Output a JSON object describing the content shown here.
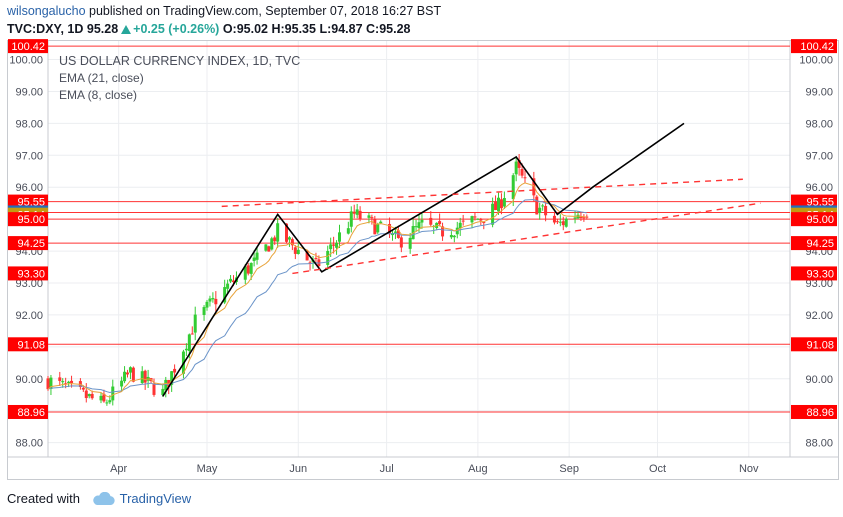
{
  "header": {
    "user": "wilsongalucho",
    "published_text": "published on TradingView.com, September 07, 2018 16:27 BST",
    "symbol": "TVC:DXY, 1D",
    "price": "95.28",
    "change": "+0.25 (+0.26%)",
    "open": "O:95.02",
    "high": "H:95.35",
    "low": "L:94.87",
    "close": "C:95.28"
  },
  "legend": {
    "title": "US DOLLAR CURRENCY INDEX, 1D, TVC",
    "ema21": "EMA (21, close)",
    "ema8": "EMA (8, close)"
  },
  "footer": {
    "created_with": "Created with",
    "brand": "TradingView"
  },
  "colors": {
    "up": "#26a69a",
    "candle_up": "#33cc33",
    "candle_down": "#ff3333",
    "hline": "#ff3333",
    "ema21": "#6b94c9",
    "ema8": "#e8a33a",
    "badge_red": "#ff0000",
    "badge_blue": "#1f6fbf",
    "badge_gold": "#c49a12"
  },
  "chart_data": {
    "type": "candlestick",
    "title": "US DOLLAR CURRENCY INDEX, 1D, TVC",
    "x_ticks": [
      "Apr",
      "May",
      "Jun",
      "Jul",
      "Aug",
      "Sep",
      "Oct",
      "Nov"
    ],
    "x_tick_dates": [
      "2018-04-01",
      "2018-05-01",
      "2018-06-01",
      "2018-07-01",
      "2018-08-01",
      "2018-09-01",
      "2018-10-01",
      "2018-11-01"
    ],
    "x_range": [
      "2018-03-08",
      "2018-11-15"
    ],
    "y_ticks": [
      88.0,
      89.0,
      90.0,
      91.0,
      92.0,
      93.0,
      94.0,
      95.0,
      96.0,
      97.0,
      98.0,
      99.0,
      100.0
    ],
    "ylim": [
      87.55,
      100.58
    ],
    "price_badges": [
      {
        "value": 100.42,
        "label": "100.42",
        "color": "red"
      },
      {
        "value": 95.55,
        "label": "95.55",
        "color": "red"
      },
      {
        "value": 95.21,
        "label": "95.21",
        "color": "blue"
      },
      {
        "value": 95.14,
        "label": "95.14",
        "color": "gold"
      },
      {
        "value": 95.0,
        "label": "95.00",
        "color": "red"
      },
      {
        "value": 94.25,
        "label": "94.25",
        "color": "red"
      },
      {
        "value": 93.3,
        "label": "93.30",
        "color": "red"
      },
      {
        "value": 91.08,
        "label": "91.08",
        "color": "red"
      },
      {
        "value": 88.96,
        "label": "88.96",
        "color": "red"
      }
    ],
    "horizontal_lines": [
      100.42,
      95.55,
      95.21,
      95.0,
      94.25,
      91.08,
      88.96
    ],
    "zigzag": [
      {
        "date": "2018-04-16",
        "value": 89.45
      },
      {
        "date": "2018-05-25",
        "value": 95.15
      },
      {
        "date": "2018-06-09",
        "value": 93.35
      },
      {
        "date": "2018-08-14",
        "value": 96.95
      },
      {
        "date": "2018-08-28",
        "value": 95.15
      },
      {
        "date": "2018-09-09",
        "value": 96.0
      },
      {
        "date": "2018-10-10",
        "value": 98.0
      }
    ],
    "channel_upper": [
      {
        "date": "2018-05-06",
        "value": 95.4
      },
      {
        "date": "2018-10-30",
        "value": 96.25
      }
    ],
    "channel_lower": [
      {
        "date": "2018-05-30",
        "value": 93.3
      },
      {
        "date": "2018-11-05",
        "value": 95.5
      }
    ],
    "candle_anchors": [
      {
        "date": "2018-03-08",
        "value": 89.95
      },
      {
        "date": "2018-03-27",
        "value": 89.2
      },
      {
        "date": "2018-04-05",
        "value": 90.2
      },
      {
        "date": "2018-04-16",
        "value": 89.55
      },
      {
        "date": "2018-04-27",
        "value": 91.8
      },
      {
        "date": "2018-05-08",
        "value": 92.9
      },
      {
        "date": "2018-05-18",
        "value": 93.7
      },
      {
        "date": "2018-05-25",
        "value": 94.6
      },
      {
        "date": "2018-06-07",
        "value": 93.5
      },
      {
        "date": "2018-06-13",
        "value": 94.2
      },
      {
        "date": "2018-06-20",
        "value": 95.15
      },
      {
        "date": "2018-06-27",
        "value": 94.8
      },
      {
        "date": "2018-07-05",
        "value": 94.3
      },
      {
        "date": "2018-07-13",
        "value": 94.8
      },
      {
        "date": "2018-07-19",
        "value": 94.6
      },
      {
        "date": "2018-07-27",
        "value": 94.8
      },
      {
        "date": "2018-08-03",
        "value": 95.1
      },
      {
        "date": "2018-08-08",
        "value": 95.4
      },
      {
        "date": "2018-08-14",
        "value": 96.6
      },
      {
        "date": "2018-08-21",
        "value": 95.4
      },
      {
        "date": "2018-08-28",
        "value": 94.8
      },
      {
        "date": "2018-09-04",
        "value": 95.2
      },
      {
        "date": "2018-09-07",
        "value": 95.28
      }
    ]
  }
}
